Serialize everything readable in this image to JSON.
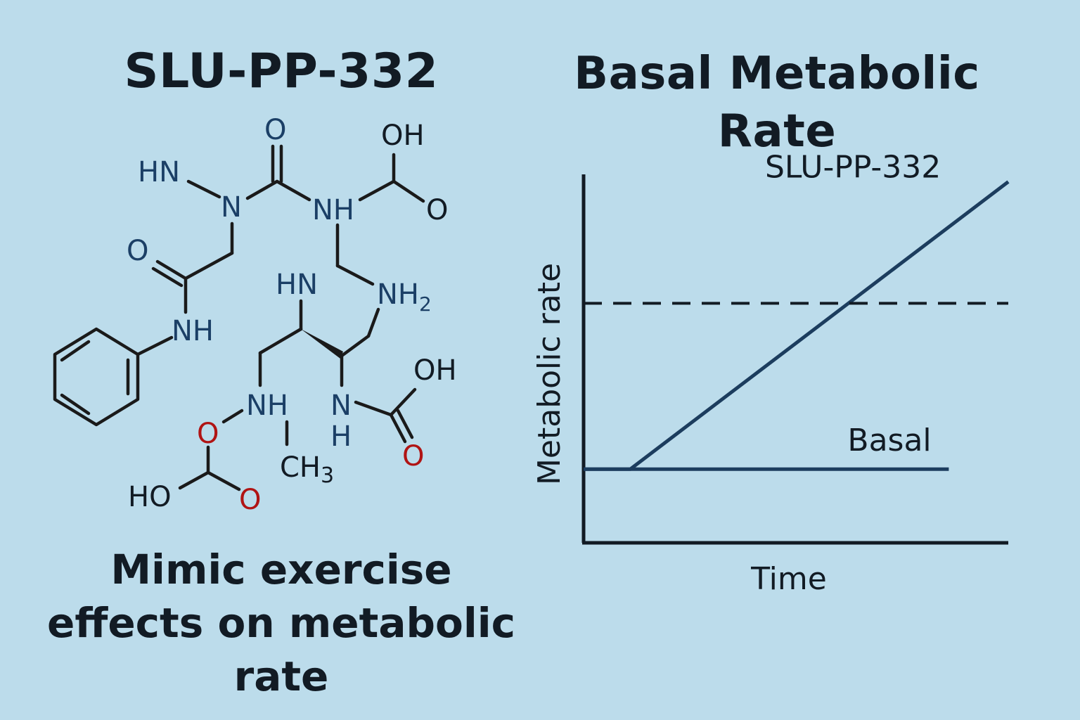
{
  "left_title": "SLU-PP-332",
  "right_title": "Basal Metabolic\nRate",
  "caption": "Mimic exercise\neffects on metabolic\nrate",
  "colors": {
    "background": "#bcdceb",
    "text": "#121b24",
    "nitrogen": "#1b3f66",
    "oxygen": "#b01414",
    "bond": "#1a1a1a",
    "series": "#1c3d5e"
  },
  "molecule": {
    "atoms": {
      "hn_top": "HN",
      "o_top": "O",
      "oh_top": "OH",
      "n_center": "N",
      "nh_center": "NH",
      "o_cooh": "O",
      "o_amide": "O",
      "hn_mid": "HN",
      "nh2_n": "NH",
      "nh2_sub": "2",
      "nh_phenyl": "NH",
      "oh_right": "OH",
      "nh_lower": "NH",
      "n_lower": "N",
      "h_lower": "H",
      "o_red_upper": "O",
      "o_red_right": "O",
      "ch3_c": "CH",
      "ch3_sub": "3",
      "ho_bottom": "HO",
      "o_red_bottom": "O"
    }
  },
  "chart_data": {
    "type": "line",
    "title": "",
    "xlabel": "Time",
    "ylabel": "Metabolic rate",
    "xlim": [
      0,
      10
    ],
    "ylim": [
      0,
      10
    ],
    "grid": false,
    "legend": "inline",
    "series": [
      {
        "name": "SLU-PP-332",
        "x": [
          0,
          1.1,
          10
        ],
        "y": [
          2.0,
          2.0,
          9.8
        ],
        "style": "solid",
        "color": "#1c3d5e"
      },
      {
        "name": "Basal",
        "x": [
          0,
          8.6
        ],
        "y": [
          2.0,
          2.0
        ],
        "style": "solid",
        "color": "#1c3d5e"
      },
      {
        "name": "",
        "x": [
          0,
          10
        ],
        "y": [
          6.5,
          6.5
        ],
        "style": "dashed",
        "color": "#121b24"
      }
    ]
  }
}
